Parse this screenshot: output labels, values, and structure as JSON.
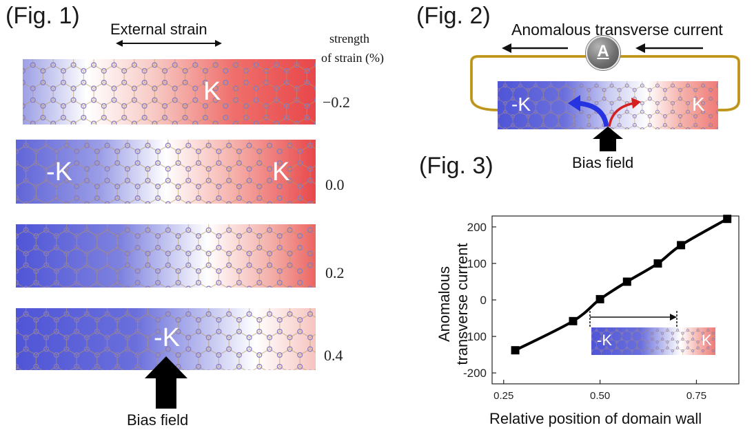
{
  "fig1": {
    "label": "(Fig. 1)",
    "external_strain": "External strain",
    "strength_line1": "strength",
    "strength_line2": "of strain (%)",
    "strips": [
      {
        "strain": "−0.2",
        "k_label": "K"
      },
      {
        "strain": "0.0",
        "k_left": "-K",
        "k_right": "K"
      },
      {
        "strain": "0.2"
      },
      {
        "strain": "0.4",
        "k_label": "-K"
      }
    ],
    "bias_field": "Bias field"
  },
  "fig2": {
    "label": "(Fig. 2)",
    "title": "Anomalous transverse current",
    "ammeter": "A",
    "k_left": "-K",
    "k_right": "K",
    "bias_field": "Bias field"
  },
  "fig3": {
    "label": "(Fig. 3)",
    "ylabel_line1": "Anomalous",
    "ylabel_line2": "transverse current",
    "xlabel": "Relative position of domain wall",
    "inset_k_left": "-K",
    "inset_k_right": "K"
  },
  "chart_data": {
    "type": "line",
    "x": [
      0.28,
      0.43,
      0.5,
      0.57,
      0.65,
      0.71,
      0.83
    ],
    "y": [
      -138,
      -58,
      2,
      50,
      100,
      150,
      222
    ],
    "xticks": [
      "0.25",
      "0.50",
      "0.75"
    ],
    "xtick_values": [
      0.25,
      0.5,
      0.75
    ],
    "yticks": [
      "-200",
      "-100",
      "0",
      "100",
      "200"
    ],
    "ytick_values": [
      -200,
      -100,
      0,
      100,
      200
    ],
    "xlim": [
      0.22,
      0.86
    ],
    "ylim": [
      -230,
      230
    ],
    "line_color": "#000000"
  },
  "colors": {
    "blue": "#4f55d6",
    "white": "#ffffff",
    "red": "#e8474a",
    "gold": "#c9a227"
  }
}
